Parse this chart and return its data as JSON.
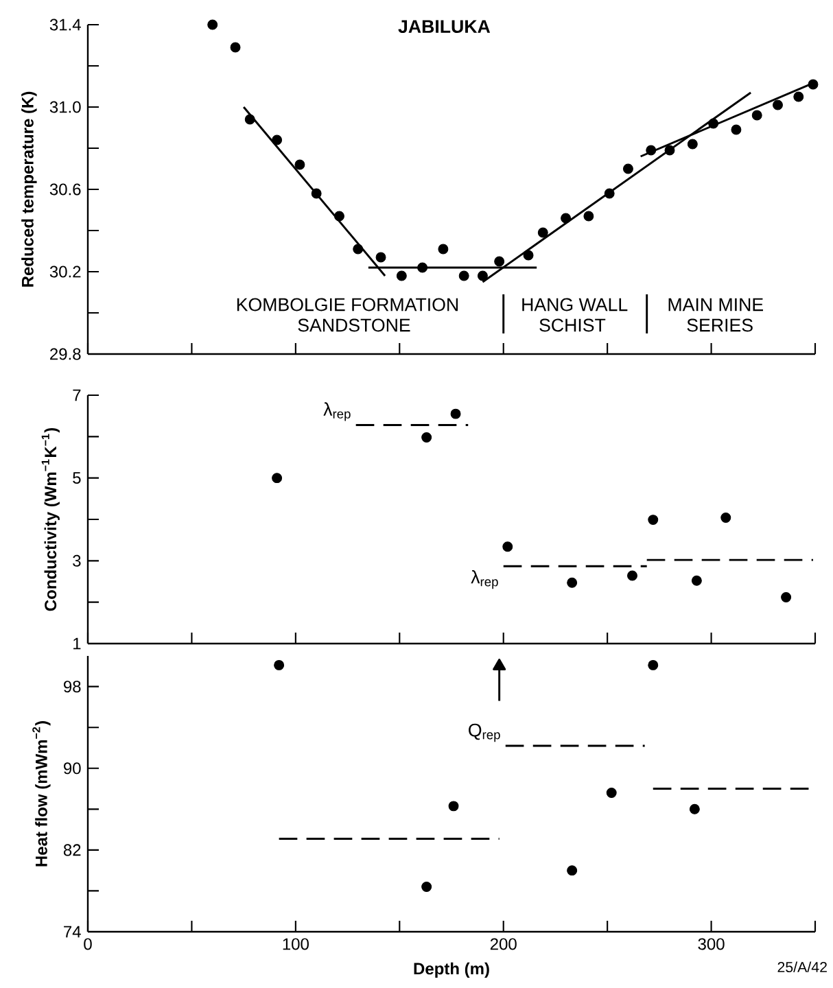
{
  "chart_data": [
    {
      "type": "scatter",
      "title": "JABILUKA",
      "ylabel": "Reduced temperature (K)",
      "xlim": [
        0,
        350
      ],
      "ylim": [
        29.8,
        31.4
      ],
      "tick_labels": "y",
      "xticks": [
        {
          "value": 0,
          "label": null
        },
        {
          "value": 50,
          "label": null
        },
        {
          "value": 100,
          "label": null
        },
        {
          "value": 150,
          "label": null
        },
        {
          "value": 200,
          "label": null
        },
        {
          "value": 250,
          "label": null
        },
        {
          "value": 300,
          "label": null
        },
        {
          "value": 350,
          "label": null
        }
      ],
      "yticks": [
        29.8,
        {
          "value": 30.0,
          "label": null
        },
        30.2,
        {
          "value": 30.4,
          "label": null
        },
        30.6,
        {
          "value": 30.8,
          "label": null
        },
        {
          "value": 31.0,
          "label": "31.0"
        },
        {
          "value": 31.2,
          "label": null
        },
        31.4
      ],
      "series": [
        {
          "type": "scatter",
          "marker": "circle",
          "color": "#000000",
          "x": [
            60,
            71,
            78,
            91,
            102,
            110,
            121,
            130,
            141,
            151,
            161,
            171,
            181,
            190,
            198,
            212,
            219,
            230,
            241,
            251,
            260,
            271,
            280,
            291,
            301,
            312,
            322,
            332,
            342,
            349
          ],
          "values": [
            31.4,
            31.29,
            30.94,
            30.84,
            30.72,
            30.58,
            30.47,
            30.31,
            30.27,
            30.18,
            30.22,
            30.31,
            30.18,
            30.18,
            30.25,
            30.28,
            30.39,
            30.46,
            30.47,
            30.58,
            30.7,
            30.79,
            30.79,
            30.82,
            30.92,
            30.89,
            30.96,
            31.01,
            31.05,
            31.11
          ]
        },
        {
          "type": "line",
          "line_style": "solid",
          "color": "#000000",
          "x": [
            75,
            143
          ],
          "values": [
            31.0,
            30.18
          ]
        },
        {
          "type": "line",
          "line_style": "solid",
          "color": "#000000",
          "x": [
            135,
            216
          ],
          "values": [
            30.22,
            30.22
          ]
        },
        {
          "type": "line",
          "line_style": "solid",
          "color": "#000000",
          "x": [
            190,
            319
          ],
          "values": [
            30.15,
            31.07
          ]
        },
        {
          "type": "line",
          "line_style": "solid",
          "color": "#000000",
          "x": [
            266,
            350
          ],
          "values": [
            30.76,
            31.12
          ]
        },
        {
          "type": "line",
          "line_style": "solid",
          "color": "#000000",
          "x": [
            200,
            200
          ],
          "values": [
            29.9,
            30.09
          ]
        },
        {
          "type": "line",
          "line_style": "solid",
          "color": "#000000",
          "x": [
            269,
            269
          ],
          "values": [
            29.9,
            30.09
          ]
        }
      ],
      "annotations": [
        "KOMBOLGIE  FORMATION",
        "SANDSTONE",
        "HANG WALL",
        "SCHIST",
        "MAIN MINE",
        "SERIES"
      ]
    },
    {
      "type": "scatter",
      "ylabel": "Conductivity (Wm$^{−1}$K$^{−1}$)",
      "xlim": [
        0,
        350
      ],
      "ylim": [
        1,
        7
      ],
      "tick_labels": "y",
      "xticks": [
        {
          "value": 0,
          "label": null
        },
        {
          "value": 50,
          "label": null
        },
        {
          "value": 100,
          "label": null
        },
        {
          "value": 150,
          "label": null
        },
        {
          "value": 200,
          "label": null
        },
        {
          "value": 250,
          "label": null
        },
        {
          "value": 300,
          "label": null
        },
        {
          "value": 350,
          "label": null
        }
      ],
      "yticks": [
        1,
        {
          "value": 2,
          "label": null
        },
        3,
        {
          "value": 4,
          "label": null
        },
        5,
        {
          "value": 6,
          "label": null
        },
        7
      ],
      "series": [
        {
          "type": "scatter",
          "marker": "circle",
          "color": "#000000",
          "x": [
            91,
            163,
            177,
            202,
            233,
            262,
            272,
            293,
            307,
            336
          ],
          "values": [
            5.0,
            5.98,
            6.55,
            3.34,
            2.47,
            2.64,
            3.99,
            2.52,
            4.04,
            2.12
          ]
        },
        {
          "type": "line",
          "line_style": "dashed",
          "color": "#000000",
          "x": [
            129,
            183
          ],
          "values": [
            6.28,
            6.28
          ]
        },
        {
          "type": "line",
          "line_style": "dashed",
          "color": "#000000",
          "x": [
            200,
            269
          ],
          "values": [
            2.87,
            2.87
          ]
        },
        {
          "type": "line",
          "line_style": "dashed",
          "color": "#000000",
          "x": [
            269,
            349
          ],
          "values": [
            3.02,
            3.02
          ]
        }
      ],
      "annotations": [
        {
          "text": "λ$_{rep}$",
          "x": 129,
          "y": 6.28
        },
        {
          "text": "λ$_{rep}$",
          "x": 200,
          "y": 2.87
        }
      ]
    },
    {
      "type": "scatter",
      "xlabel": "Depth (m)",
      "ylabel": "Heat flow (mWm$^{−2}$)",
      "xlim": [
        0,
        350
      ],
      "ylim": [
        74,
        101
      ],
      "xticks": [
        0,
        {
          "value": 50,
          "label": null
        },
        100,
        {
          "value": 150,
          "label": null
        },
        200,
        {
          "value": 250,
          "label": null
        },
        300,
        {
          "value": 350,
          "label": null
        }
      ],
      "yticks": [
        74,
        {
          "value": 78,
          "label": null
        },
        82,
        {
          "value": 86,
          "label": null
        },
        90,
        {
          "value": 94,
          "label": null
        },
        98
      ],
      "series": [
        {
          "type": "scatter",
          "marker": "circle",
          "color": "#000000",
          "x": [
            92,
            163,
            176,
            233,
            252,
            272,
            292
          ],
          "values": [
            100.1,
            78.4,
            86.3,
            80.0,
            87.6,
            100.1,
            86.0
          ]
        },
        {
          "type": "line",
          "line_style": "dashed",
          "color": "#000000",
          "x": [
            92,
            198
          ],
          "values": [
            83.1,
            83.1
          ]
        },
        {
          "type": "line",
          "line_style": "dashed",
          "color": "#000000",
          "x": [
            201,
            268
          ],
          "values": [
            92.2,
            92.2
          ]
        },
        {
          "type": "line",
          "line_style": "dashed",
          "color": "#000000",
          "x": [
            272,
            350
          ],
          "values": [
            88.0,
            88.0
          ]
        },
        {
          "type": "line",
          "line_style": "solid",
          "marker": "triangle",
          "color": "#000000",
          "x": [
            198,
            198
          ],
          "values": [
            96.6,
            100.0
          ]
        }
      ],
      "annotations": [
        {
          "text": "Q$_{rep}$",
          "x": 201,
          "y": 92.2
        },
        "25/A/42"
      ]
    }
  ]
}
